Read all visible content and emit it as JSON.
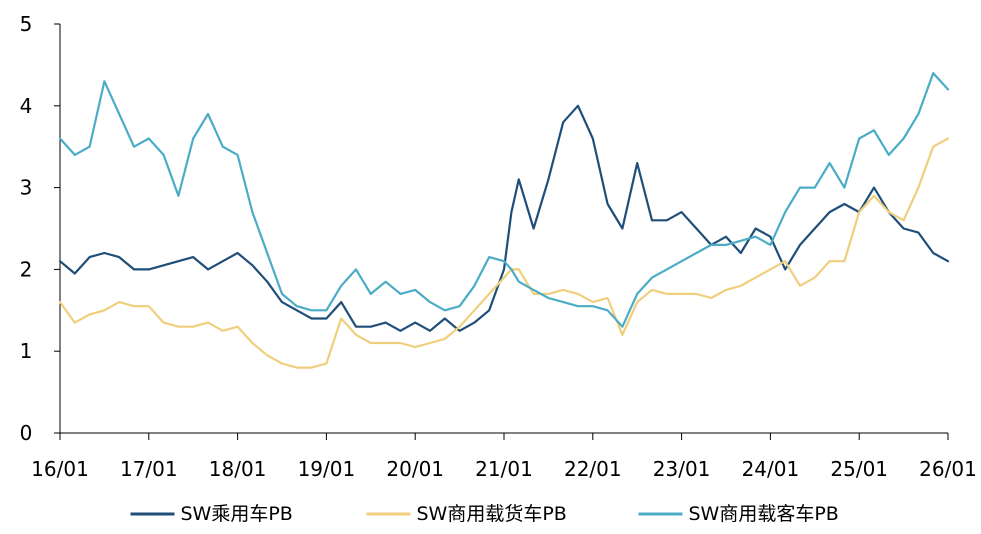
{
  "chart_data": {
    "type": "line",
    "title": "",
    "xlabel": "",
    "ylabel": "",
    "ylim": [
      0,
      5
    ],
    "xlim": [
      "2016-01",
      "2026-01"
    ],
    "grid": false,
    "legend_position": "bottom",
    "y_ticks": [
      "0",
      "1",
      "2",
      "3",
      "4",
      "5"
    ],
    "x_ticks": [
      "16/01",
      "17/01",
      "18/01",
      "19/01",
      "20/01",
      "21/01",
      "22/01",
      "23/01",
      "24/01",
      "25/01",
      "26/01"
    ],
    "series": [
      {
        "name": "SW乘用车PB",
        "color": "#1f4e79",
        "x": [
          "2016-01",
          "2016-03",
          "2016-05",
          "2016-07",
          "2016-09",
          "2016-11",
          "2017-01",
          "2017-03",
          "2017-05",
          "2017-07",
          "2017-09",
          "2017-11",
          "2018-01",
          "2018-03",
          "2018-05",
          "2018-07",
          "2018-09",
          "2018-11",
          "2019-01",
          "2019-03",
          "2019-05",
          "2019-07",
          "2019-09",
          "2019-11",
          "2020-01",
          "2020-03",
          "2020-05",
          "2020-07",
          "2020-09",
          "2020-11",
          "2021-01",
          "2021-02",
          "2021-03",
          "2021-05",
          "2021-07",
          "2021-09",
          "2021-11",
          "2022-01",
          "2022-03",
          "2022-05",
          "2022-07",
          "2022-09",
          "2022-11",
          "2023-01",
          "2023-03",
          "2023-05",
          "2023-07",
          "2023-09",
          "2023-11",
          "2024-01",
          "2024-03",
          "2024-05",
          "2024-07",
          "2024-09",
          "2024-11",
          "2025-01",
          "2025-03",
          "2025-05",
          "2025-07",
          "2025-09",
          "2025-11",
          "2026-01"
        ],
        "values": [
          2.1,
          1.95,
          2.15,
          2.2,
          2.15,
          2.0,
          2.0,
          2.05,
          2.1,
          2.15,
          2.0,
          2.1,
          2.2,
          2.05,
          1.85,
          1.6,
          1.5,
          1.4,
          1.4,
          1.6,
          1.3,
          1.3,
          1.35,
          1.25,
          1.35,
          1.25,
          1.4,
          1.25,
          1.35,
          1.5,
          2.0,
          2.7,
          3.1,
          2.5,
          3.1,
          3.8,
          4.0,
          3.6,
          2.8,
          2.5,
          3.3,
          2.6,
          2.6,
          2.7,
          2.5,
          2.3,
          2.4,
          2.2,
          2.5,
          2.4,
          2.0,
          2.3,
          2.5,
          2.7,
          2.8,
          2.7,
          3.0,
          2.7,
          2.5,
          2.45,
          2.2,
          2.1
        ]
      },
      {
        "name": "SW商用载货车PB",
        "color": "#f0cf7c",
        "x": [
          "2016-01",
          "2016-03",
          "2016-05",
          "2016-07",
          "2016-09",
          "2016-11",
          "2017-01",
          "2017-03",
          "2017-05",
          "2017-07",
          "2017-09",
          "2017-11",
          "2018-01",
          "2018-03",
          "2018-05",
          "2018-07",
          "2018-09",
          "2018-11",
          "2019-01",
          "2019-03",
          "2019-05",
          "2019-07",
          "2019-09",
          "2019-11",
          "2020-01",
          "2020-03",
          "2020-05",
          "2020-07",
          "2020-09",
          "2020-11",
          "2021-01",
          "2021-02",
          "2021-03",
          "2021-05",
          "2021-07",
          "2021-09",
          "2021-11",
          "2022-01",
          "2022-03",
          "2022-05",
          "2022-07",
          "2022-09",
          "2022-11",
          "2023-01",
          "2023-03",
          "2023-05",
          "2023-07",
          "2023-09",
          "2023-11",
          "2024-01",
          "2024-03",
          "2024-05",
          "2024-07",
          "2024-09",
          "2024-11",
          "2025-01",
          "2025-03",
          "2025-05",
          "2025-07",
          "2025-09",
          "2025-11",
          "2026-01"
        ],
        "values": [
          1.6,
          1.35,
          1.45,
          1.5,
          1.6,
          1.55,
          1.55,
          1.35,
          1.3,
          1.3,
          1.35,
          1.25,
          1.3,
          1.1,
          0.95,
          0.85,
          0.8,
          0.8,
          0.85,
          1.4,
          1.2,
          1.1,
          1.1,
          1.1,
          1.05,
          1.1,
          1.15,
          1.3,
          1.5,
          1.7,
          1.9,
          2.0,
          2.0,
          1.7,
          1.7,
          1.75,
          1.7,
          1.6,
          1.65,
          1.2,
          1.6,
          1.75,
          1.7,
          1.7,
          1.7,
          1.65,
          1.75,
          1.8,
          1.9,
          2.0,
          2.1,
          1.8,
          1.9,
          2.1,
          2.1,
          2.7,
          2.9,
          2.7,
          2.6,
          3.0,
          3.5,
          3.6
        ]
      },
      {
        "name": "SW商用载客车PB",
        "color": "#4bacc6",
        "x": [
          "2016-01",
          "2016-03",
          "2016-05",
          "2016-07",
          "2016-09",
          "2016-11",
          "2017-01",
          "2017-03",
          "2017-05",
          "2017-07",
          "2017-09",
          "2017-11",
          "2018-01",
          "2018-03",
          "2018-05",
          "2018-07",
          "2018-09",
          "2018-11",
          "2019-01",
          "2019-03",
          "2019-05",
          "2019-07",
          "2019-09",
          "2019-11",
          "2020-01",
          "2020-03",
          "2020-05",
          "2020-07",
          "2020-09",
          "2020-11",
          "2021-01",
          "2021-02",
          "2021-03",
          "2021-05",
          "2021-07",
          "2021-09",
          "2021-11",
          "2022-01",
          "2022-03",
          "2022-05",
          "2022-07",
          "2022-09",
          "2022-11",
          "2023-01",
          "2023-03",
          "2023-05",
          "2023-07",
          "2023-09",
          "2023-11",
          "2024-01",
          "2024-03",
          "2024-05",
          "2024-07",
          "2024-09",
          "2024-11",
          "2025-01",
          "2025-03",
          "2025-05",
          "2025-07",
          "2025-09",
          "2025-11",
          "2026-01"
        ],
        "values": [
          3.6,
          3.4,
          3.5,
          4.3,
          3.9,
          3.5,
          3.6,
          3.4,
          2.9,
          3.6,
          3.9,
          3.5,
          3.4,
          2.7,
          2.2,
          1.7,
          1.55,
          1.5,
          1.5,
          1.8,
          2.0,
          1.7,
          1.85,
          1.7,
          1.75,
          1.6,
          1.5,
          1.55,
          1.8,
          2.15,
          2.1,
          2.0,
          1.85,
          1.75,
          1.65,
          1.6,
          1.55,
          1.55,
          1.5,
          1.3,
          1.7,
          1.9,
          2.0,
          2.1,
          2.2,
          2.3,
          2.3,
          2.35,
          2.4,
          2.3,
          2.7,
          3.0,
          3.0,
          3.3,
          3.0,
          3.6,
          3.7,
          3.4,
          3.6,
          3.9,
          4.4,
          4.2
        ]
      }
    ]
  }
}
